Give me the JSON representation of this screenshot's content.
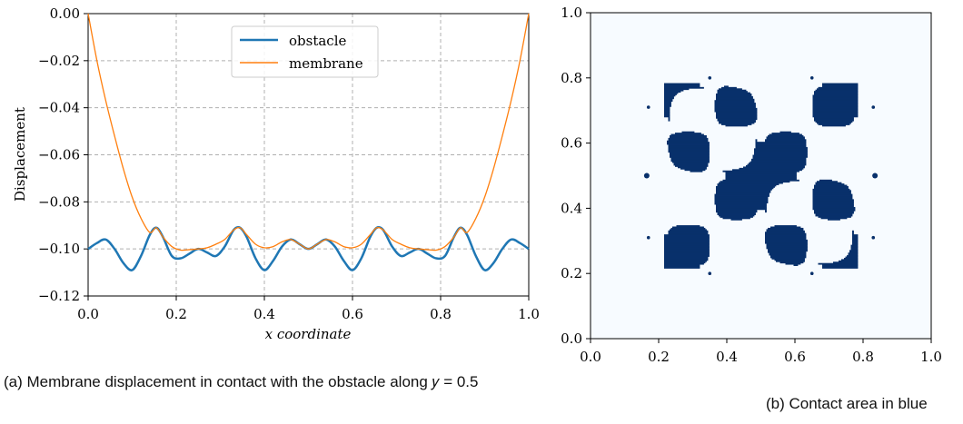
{
  "chart_data": [
    {
      "type": "line",
      "title": "",
      "xlabel": "x coordinate",
      "ylabel": "Displacement",
      "xlim": [
        0.0,
        1.0
      ],
      "ylim": [
        -0.12,
        0.0
      ],
      "xticks": [
        "0.0",
        "0.2",
        "0.4",
        "0.6",
        "0.8",
        "1.0"
      ],
      "yticks": [
        "0.00",
        "−0.02",
        "−0.04",
        "−0.06",
        "−0.08",
        "−0.10",
        "−0.12"
      ],
      "grid": true,
      "legend": "top-center",
      "series": [
        {
          "name": "obstacle",
          "color": "#1f77b4",
          "x": [
            0.0,
            0.02,
            0.04,
            0.06,
            0.08,
            0.1,
            0.12,
            0.14,
            0.155,
            0.17,
            0.19,
            0.21,
            0.23,
            0.25,
            0.27,
            0.29,
            0.31,
            0.33,
            0.345,
            0.36,
            0.38,
            0.4,
            0.42,
            0.44,
            0.46,
            0.48,
            0.5,
            0.52,
            0.54,
            0.56,
            0.58,
            0.6,
            0.62,
            0.64,
            0.655,
            0.67,
            0.69,
            0.71,
            0.73,
            0.75,
            0.77,
            0.79,
            0.81,
            0.83,
            0.845,
            0.86,
            0.88,
            0.9,
            0.92,
            0.94,
            0.96,
            0.98,
            1.0
          ],
          "y": [
            -0.1,
            -0.0975,
            -0.096,
            -0.1,
            -0.106,
            -0.109,
            -0.103,
            -0.094,
            -0.091,
            -0.095,
            -0.103,
            -0.104,
            -0.102,
            -0.1,
            -0.1015,
            -0.103,
            -0.099,
            -0.092,
            -0.091,
            -0.095,
            -0.104,
            -0.109,
            -0.105,
            -0.099,
            -0.096,
            -0.098,
            -0.1,
            -0.098,
            -0.096,
            -0.099,
            -0.105,
            -0.109,
            -0.104,
            -0.095,
            -0.091,
            -0.092,
            -0.099,
            -0.103,
            -0.1015,
            -0.1,
            -0.102,
            -0.104,
            -0.103,
            -0.095,
            -0.091,
            -0.094,
            -0.103,
            -0.109,
            -0.106,
            -0.1,
            -0.096,
            -0.0975,
            -0.1
          ]
        },
        {
          "name": "membrane",
          "color": "#ff7f0e",
          "x": [
            0.0,
            0.02,
            0.04,
            0.06,
            0.08,
            0.1,
            0.12,
            0.14,
            0.155,
            0.17,
            0.19,
            0.21,
            0.23,
            0.25,
            0.27,
            0.29,
            0.31,
            0.33,
            0.345,
            0.36,
            0.38,
            0.4,
            0.42,
            0.44,
            0.46,
            0.48,
            0.5,
            0.52,
            0.54,
            0.56,
            0.58,
            0.6,
            0.62,
            0.64,
            0.655,
            0.67,
            0.69,
            0.71,
            0.73,
            0.75,
            0.77,
            0.79,
            0.81,
            0.83,
            0.845,
            0.86,
            0.88,
            0.9,
            0.92,
            0.94,
            0.96,
            0.98,
            1.0
          ],
          "y": [
            0.0,
            -0.02,
            -0.037,
            -0.052,
            -0.066,
            -0.078,
            -0.087,
            -0.093,
            -0.091,
            -0.095,
            -0.099,
            -0.1005,
            -0.1003,
            -0.1,
            -0.0995,
            -0.098,
            -0.096,
            -0.092,
            -0.091,
            -0.094,
            -0.098,
            -0.0995,
            -0.099,
            -0.097,
            -0.096,
            -0.098,
            -0.1,
            -0.098,
            -0.096,
            -0.097,
            -0.099,
            -0.0995,
            -0.098,
            -0.094,
            -0.091,
            -0.092,
            -0.096,
            -0.098,
            -0.0995,
            -0.1,
            -0.1003,
            -0.1005,
            -0.099,
            -0.095,
            -0.091,
            -0.093,
            -0.087,
            -0.078,
            -0.066,
            -0.052,
            -0.037,
            -0.02,
            0.0
          ]
        }
      ]
    },
    {
      "type": "heatmap",
      "title": "",
      "xlabel": "",
      "ylabel": "",
      "xlim": [
        0.0,
        1.0
      ],
      "ylim": [
        0.0,
        1.0
      ],
      "xticks": [
        "0.0",
        "0.2",
        "0.4",
        "0.6",
        "0.8",
        "1.0"
      ],
      "yticks": [
        "0.0",
        "0.2",
        "0.4",
        "0.6",
        "0.8",
        "1.0"
      ],
      "grid": false,
      "background_color": "#f7fbff",
      "contact_color": "#08306b"
    }
  ],
  "captions": {
    "a": "(a) Membrane displacement in contact with the obstacle along 𝑦 = 0.5",
    "b": "(b) Contact area in blue"
  }
}
